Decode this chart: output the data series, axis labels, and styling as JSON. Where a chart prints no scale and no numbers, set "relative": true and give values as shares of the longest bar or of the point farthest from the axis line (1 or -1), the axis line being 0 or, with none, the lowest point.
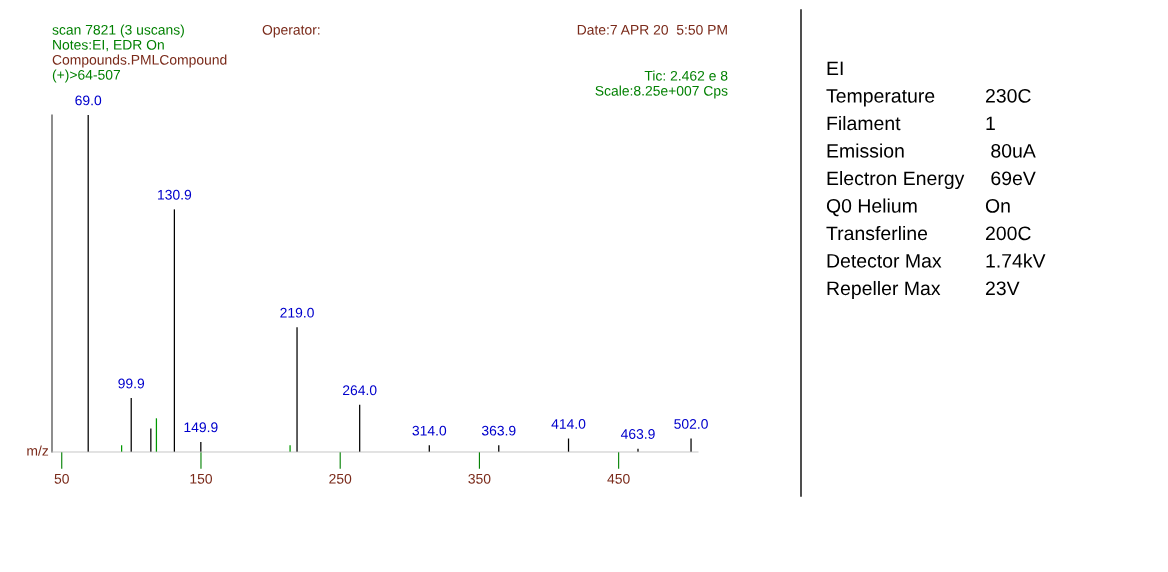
{
  "chart_data": [
    {
      "type": "bar",
      "relative": true,
      "xlabel": "m/z",
      "x": [
        69.0,
        93,
        99.9,
        114,
        118,
        130.9,
        149.9,
        214,
        219.0,
        264.0,
        314.0,
        363.9,
        414.0,
        463.9,
        502.0
      ],
      "values": [
        1.0,
        0.02,
        0.16,
        0.07,
        0.1,
        0.72,
        0.03,
        0.02,
        0.37,
        0.14,
        0.02,
        0.02,
        0.04,
        0.01,
        0.04
      ],
      "colors": [
        "#000000",
        "#009900",
        "#000000",
        "#000000",
        "#009900",
        "#000000",
        "#000000",
        "#009900",
        "#000000",
        "#000000",
        "#000000",
        "#000000",
        "#000000",
        "#000000",
        "#000000"
      ],
      "xlim": [
        43,
        507
      ],
      "xticks": [
        50,
        150,
        250,
        350,
        450
      ],
      "grid": false,
      "annotations": [
        "scan 7821 (3 uscans)",
        "Operator:",
        "Date:7 APR 20  5:50 PM",
        "Notes:EI, EDR On",
        "Compounds.PMLCompound",
        "(+)>64-507",
        "Tic: 2.462 e 8",
        "Scale:8.25e+007 Cps",
        {
          "text": "69.0",
          "x": 69.0,
          "y": 1.0
        },
        {
          "text": "130.9",
          "x": 130.9,
          "y": 0.72
        },
        {
          "text": "219.0",
          "x": 219.0,
          "y": 0.37
        },
        {
          "text": "99.9",
          "x": 99.9,
          "y": 0.16
        },
        {
          "text": "264.0",
          "x": 264.0,
          "y": 0.14
        },
        {
          "text": "149.9",
          "x": 149.9,
          "y": 0.03
        },
        {
          "text": "314.0",
          "x": 314.0,
          "y": 0.02
        },
        {
          "text": "363.9",
          "x": 363.9,
          "y": 0.02
        },
        {
          "text": "414.0",
          "x": 414.0,
          "y": 0.04
        },
        {
          "text": "463.9",
          "x": 463.9,
          "y": 0.01
        },
        {
          "text": "502.0",
          "x": 502.0,
          "y": 0.04
        }
      ]
    },
    {
      "type": "other",
      "annotations": [
        "EI",
        "Temperature",
        "230C",
        "Filament",
        "1",
        "Emission",
        " 80uA",
        "Electron Energy",
        " 69eV",
        "Q0 Helium",
        "On",
        "Transferline",
        "200C",
        "Detector Max",
        "1.74kV",
        "Repeller Max",
        "23V"
      ]
    }
  ]
}
